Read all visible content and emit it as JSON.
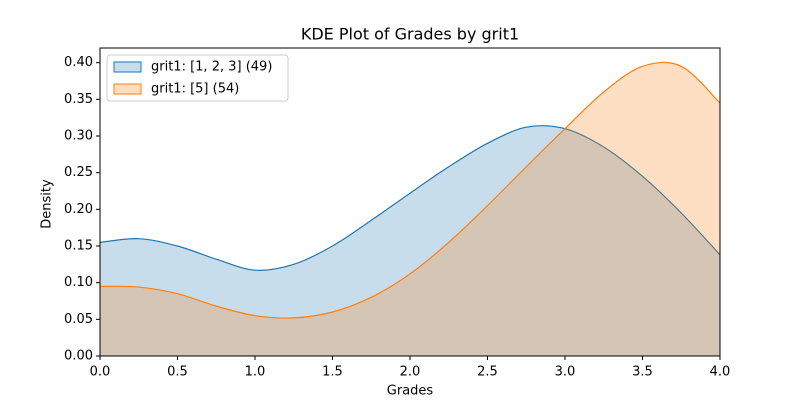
{
  "chart_data": {
    "type": "area",
    "title": "KDE Plot of Grades by grit1",
    "xlabel": "Grades",
    "ylabel": "Density",
    "x": [
      0,
      0.25,
      0.5,
      0.75,
      1,
      1.25,
      1.5,
      1.75,
      2,
      2.25,
      2.5,
      2.75,
      3,
      3.25,
      3.5,
      3.75,
      4
    ],
    "series": [
      {
        "name": "grit1: [1, 2, 3] (49)",
        "color": "#1f77b4",
        "values": [
          0.155,
          0.16,
          0.15,
          0.132,
          0.117,
          0.125,
          0.15,
          0.185,
          0.222,
          0.258,
          0.29,
          0.312,
          0.31,
          0.285,
          0.245,
          0.195,
          0.138
        ]
      },
      {
        "name": "grit1: [5] (54)",
        "color": "#ff7f0e",
        "values": [
          0.095,
          0.094,
          0.085,
          0.068,
          0.055,
          0.052,
          0.06,
          0.08,
          0.112,
          0.155,
          0.205,
          0.258,
          0.31,
          0.36,
          0.395,
          0.395,
          0.345
        ]
      }
    ],
    "xlim": [
      0,
      4
    ],
    "ylim": [
      0,
      0.42
    ],
    "xticks": [
      {
        "value": 0,
        "label": "0.0"
      },
      0.5,
      {
        "value": 1,
        "label": "1.0"
      },
      1.5,
      {
        "value": 2,
        "label": "2.0"
      },
      2.5,
      {
        "value": 3,
        "label": "3.0"
      },
      3.5,
      {
        "value": 4,
        "label": "4.0"
      }
    ],
    "yticks": [
      {
        "value": 0,
        "label": "0.00"
      },
      0.05,
      {
        "value": 0.1,
        "label": "0.10"
      },
      0.15,
      {
        "value": 0.2,
        "label": "0.20"
      },
      0.25,
      {
        "value": 0.3,
        "label": "0.30"
      },
      0.35,
      {
        "value": 0.4,
        "label": "0.40"
      }
    ],
    "legend": "upper left",
    "grid": false
  }
}
